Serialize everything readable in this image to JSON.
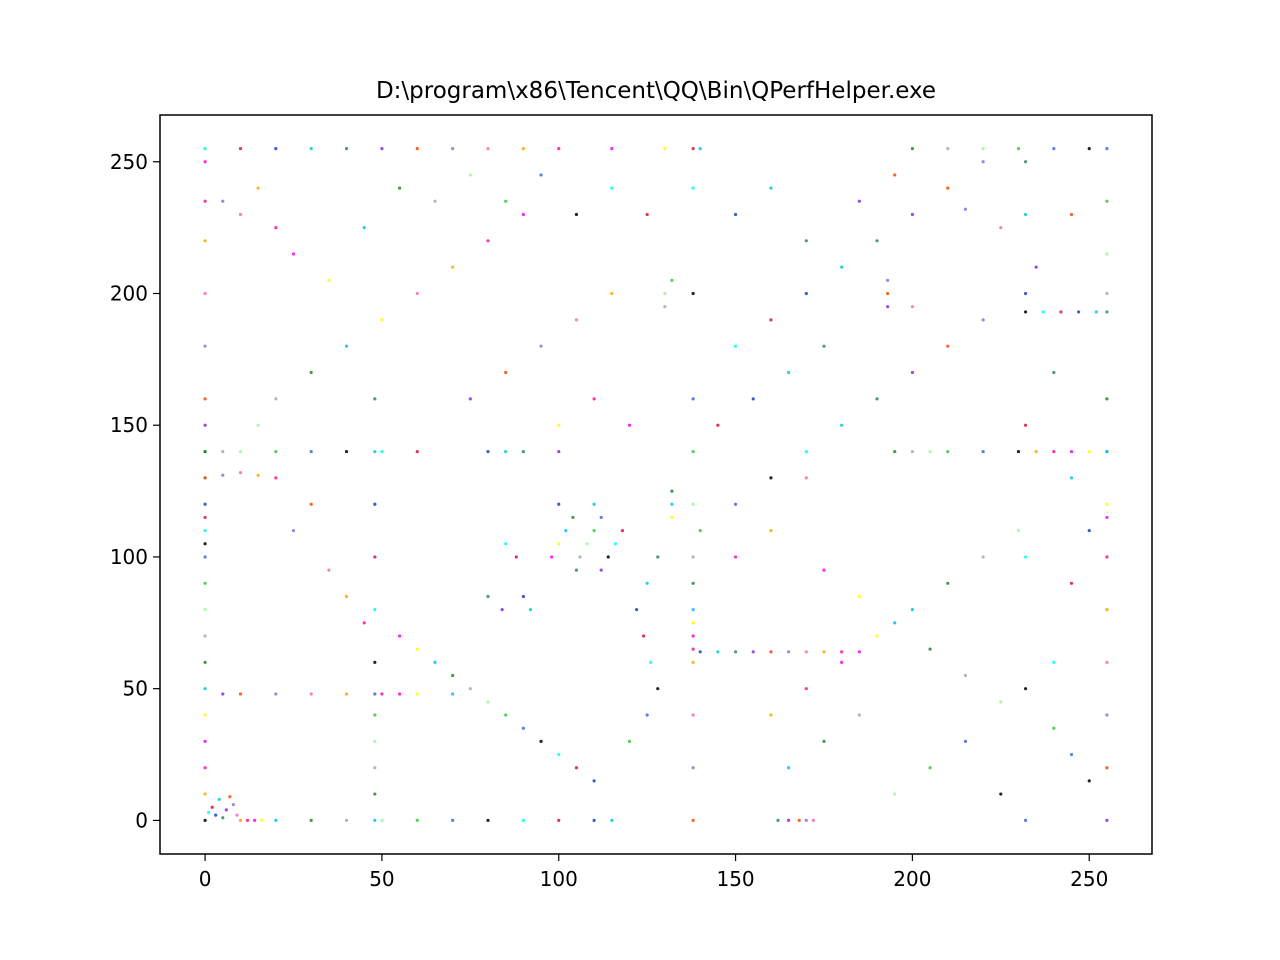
{
  "chart_data": {
    "type": "scatter",
    "title": "D:\\program\\x86\\Tencent\\QQ\\Bin\\QPerfHelper.exe",
    "xlabel": "",
    "ylabel": "",
    "xlim": [
      -12.75,
      267.75
    ],
    "ylim": [
      -12.75,
      267.75
    ],
    "xticks": [
      0,
      50,
      100,
      150,
      200,
      250
    ],
    "yticks": [
      0,
      50,
      100,
      150,
      200,
      250
    ],
    "grid": false,
    "legend": "none",
    "point_palette": [
      "#000000",
      "#1f3fbf",
      "#8a2be2",
      "#ff69b4",
      "#ff00ff",
      "#228b22",
      "#32cd32",
      "#00ffff",
      "#00ced1",
      "#ff4500",
      "#ffa500",
      "#ffff00",
      "#a9a9a9",
      "#4169e1",
      "#dc143c",
      "#2e8b57",
      "#9370db",
      "#ff1493",
      "#00bfff",
      "#98fb98"
    ],
    "series": [
      {
        "note_kind": "scatter",
        "points": [
          [
            0,
            0
          ],
          [
            1,
            3
          ],
          [
            2,
            5
          ],
          [
            3,
            2
          ],
          [
            4,
            8
          ],
          [
            5,
            1
          ],
          [
            6,
            4
          ],
          [
            7,
            9
          ],
          [
            8,
            6
          ],
          [
            9,
            2
          ],
          [
            10,
            0
          ],
          [
            12,
            0
          ],
          [
            14,
            0
          ],
          [
            16,
            0
          ],
          [
            20,
            0
          ],
          [
            30,
            0
          ],
          [
            40,
            0
          ],
          [
            50,
            0
          ],
          [
            60,
            0
          ],
          [
            70,
            0
          ],
          [
            80,
            0
          ],
          [
            90,
            0
          ],
          [
            100,
            0
          ],
          [
            110,
            0
          ],
          [
            115,
            0
          ],
          [
            162,
            0
          ],
          [
            165,
            0
          ],
          [
            168,
            0
          ],
          [
            170,
            0
          ],
          [
            172,
            0
          ],
          [
            0,
            10
          ],
          [
            0,
            20
          ],
          [
            0,
            30
          ],
          [
            0,
            40
          ],
          [
            0,
            50
          ],
          [
            0,
            60
          ],
          [
            0,
            70
          ],
          [
            0,
            80
          ],
          [
            0,
            90
          ],
          [
            0,
            100
          ],
          [
            0,
            105
          ],
          [
            0,
            110
          ],
          [
            0,
            115
          ],
          [
            0,
            120
          ],
          [
            0,
            130
          ],
          [
            0,
            140
          ],
          [
            0,
            150
          ],
          [
            0,
            160
          ],
          [
            0,
            180
          ],
          [
            0,
            200
          ],
          [
            0,
            220
          ],
          [
            0,
            235
          ],
          [
            0,
            250
          ],
          [
            0,
            255
          ],
          [
            48,
            0
          ],
          [
            48,
            10
          ],
          [
            48,
            20
          ],
          [
            48,
            30
          ],
          [
            48,
            40
          ],
          [
            48,
            48
          ],
          [
            48,
            60
          ],
          [
            48,
            80
          ],
          [
            48,
            100
          ],
          [
            48,
            120
          ],
          [
            48,
            140
          ],
          [
            48,
            160
          ],
          [
            5,
            48
          ],
          [
            10,
            48
          ],
          [
            20,
            48
          ],
          [
            30,
            48
          ],
          [
            40,
            48
          ],
          [
            50,
            48
          ],
          [
            55,
            48
          ],
          [
            60,
            48
          ],
          [
            70,
            48
          ],
          [
            0,
            140
          ],
          [
            5,
            140
          ],
          [
            10,
            140
          ],
          [
            20,
            140
          ],
          [
            30,
            140
          ],
          [
            40,
            140
          ],
          [
            50,
            140
          ],
          [
            60,
            140
          ],
          [
            80,
            140
          ],
          [
            85,
            140
          ],
          [
            90,
            140
          ],
          [
            100,
            140
          ],
          [
            0,
            130
          ],
          [
            5,
            131
          ],
          [
            10,
            132
          ],
          [
            15,
            131
          ],
          [
            20,
            130
          ],
          [
            98,
            100
          ],
          [
            100,
            105
          ],
          [
            102,
            110
          ],
          [
            104,
            115
          ],
          [
            106,
            100
          ],
          [
            108,
            105
          ],
          [
            110,
            110
          ],
          [
            112,
            115
          ],
          [
            114,
            100
          ],
          [
            116,
            105
          ],
          [
            118,
            110
          ],
          [
            100,
            120
          ],
          [
            110,
            120
          ],
          [
            105,
            95
          ],
          [
            112,
            95
          ],
          [
            138,
            0
          ],
          [
            138,
            20
          ],
          [
            138,
            40
          ],
          [
            138,
            60
          ],
          [
            138,
            65
          ],
          [
            138,
            70
          ],
          [
            138,
            75
          ],
          [
            138,
            80
          ],
          [
            138,
            90
          ],
          [
            138,
            100
          ],
          [
            138,
            120
          ],
          [
            138,
            140
          ],
          [
            138,
            160
          ],
          [
            138,
            200
          ],
          [
            138,
            240
          ],
          [
            138,
            255
          ],
          [
            140,
            64
          ],
          [
            145,
            64
          ],
          [
            150,
            64
          ],
          [
            155,
            64
          ],
          [
            160,
            64
          ],
          [
            165,
            64
          ],
          [
            170,
            64
          ],
          [
            175,
            64
          ],
          [
            180,
            64
          ],
          [
            185,
            64
          ],
          [
            132,
            115
          ],
          [
            132,
            120
          ],
          [
            132,
            125
          ],
          [
            130,
            195
          ],
          [
            130,
            200
          ],
          [
            132,
            205
          ],
          [
            232,
            0
          ],
          [
            232,
            50
          ],
          [
            232,
            100
          ],
          [
            232,
            150
          ],
          [
            232,
            200
          ],
          [
            232,
            230
          ],
          [
            232,
            250
          ],
          [
            255,
            0
          ],
          [
            255,
            20
          ],
          [
            255,
            40
          ],
          [
            255,
            60
          ],
          [
            255,
            80
          ],
          [
            255,
            100
          ],
          [
            255,
            115
          ],
          [
            255,
            120
          ],
          [
            255,
            140
          ],
          [
            255,
            160
          ],
          [
            255,
            200
          ],
          [
            255,
            215
          ],
          [
            255,
            235
          ],
          [
            255,
            255
          ],
          [
            232,
            193
          ],
          [
            237,
            193
          ],
          [
            242,
            193
          ],
          [
            247,
            193
          ],
          [
            252,
            193
          ],
          [
            255,
            193
          ],
          [
            193,
            195
          ],
          [
            193,
            200
          ],
          [
            193,
            205
          ],
          [
            200,
            195
          ],
          [
            235,
            140
          ],
          [
            240,
            140
          ],
          [
            245,
            140
          ],
          [
            250,
            140
          ],
          [
            255,
            140
          ],
          [
            195,
            140
          ],
          [
            200,
            140
          ],
          [
            205,
            140
          ],
          [
            210,
            140
          ],
          [
            220,
            140
          ],
          [
            230,
            140
          ],
          [
            0,
            255
          ],
          [
            10,
            255
          ],
          [
            20,
            255
          ],
          [
            30,
            255
          ],
          [
            40,
            255
          ],
          [
            50,
            255
          ],
          [
            60,
            255
          ],
          [
            70,
            255
          ],
          [
            80,
            255
          ],
          [
            90,
            255
          ],
          [
            100,
            255
          ],
          [
            115,
            255
          ],
          [
            130,
            255
          ],
          [
            140,
            255
          ],
          [
            200,
            255
          ],
          [
            210,
            255
          ],
          [
            220,
            255
          ],
          [
            230,
            255
          ],
          [
            240,
            255
          ],
          [
            250,
            255
          ],
          [
            85,
            105
          ],
          [
            88,
            100
          ],
          [
            90,
            85
          ],
          [
            92,
            80
          ],
          [
            80,
            85
          ],
          [
            84,
            80
          ],
          [
            30,
            120
          ],
          [
            25,
            110
          ],
          [
            35,
            95
          ],
          [
            40,
            85
          ],
          [
            45,
            75
          ],
          [
            55,
            70
          ],
          [
            60,
            65
          ],
          [
            65,
            60
          ],
          [
            70,
            55
          ],
          [
            75,
            50
          ],
          [
            80,
            45
          ],
          [
            85,
            40
          ],
          [
            90,
            35
          ],
          [
            95,
            30
          ],
          [
            100,
            25
          ],
          [
            105,
            20
          ],
          [
            110,
            15
          ],
          [
            180,
            150
          ],
          [
            190,
            160
          ],
          [
            200,
            170
          ],
          [
            210,
            180
          ],
          [
            220,
            190
          ],
          [
            170,
            130
          ],
          [
            160,
            110
          ],
          [
            150,
            100
          ],
          [
            175,
            95
          ],
          [
            185,
            85
          ],
          [
            195,
            75
          ],
          [
            205,
            65
          ],
          [
            215,
            55
          ],
          [
            225,
            45
          ],
          [
            240,
            35
          ],
          [
            245,
            25
          ],
          [
            250,
            15
          ],
          [
            150,
            180
          ],
          [
            160,
            190
          ],
          [
            170,
            200
          ],
          [
            180,
            210
          ],
          [
            190,
            220
          ],
          [
            200,
            230
          ],
          [
            210,
            240
          ],
          [
            220,
            250
          ],
          [
            60,
            200
          ],
          [
            70,
            210
          ],
          [
            80,
            220
          ],
          [
            90,
            230
          ],
          [
            50,
            190
          ],
          [
            40,
            180
          ],
          [
            30,
            170
          ],
          [
            20,
            160
          ],
          [
            15,
            150
          ],
          [
            120,
            30
          ],
          [
            125,
            40
          ],
          [
            128,
            50
          ],
          [
            126,
            60
          ],
          [
            124,
            70
          ],
          [
            122,
            80
          ],
          [
            125,
            90
          ],
          [
            128,
            100
          ],
          [
            75,
            160
          ],
          [
            85,
            170
          ],
          [
            95,
            180
          ],
          [
            105,
            190
          ],
          [
            115,
            200
          ],
          [
            110,
            160
          ],
          [
            120,
            150
          ],
          [
            100,
            150
          ],
          [
            165,
            20
          ],
          [
            175,
            30
          ],
          [
            185,
            40
          ],
          [
            195,
            10
          ],
          [
            205,
            20
          ],
          [
            215,
            30
          ],
          [
            225,
            10
          ],
          [
            240,
            60
          ],
          [
            245,
            90
          ],
          [
            250,
            110
          ],
          [
            245,
            130
          ],
          [
            240,
            170
          ],
          [
            235,
            210
          ],
          [
            245,
            230
          ],
          [
            5,
            235
          ],
          [
            10,
            230
          ],
          [
            15,
            240
          ],
          [
            20,
            225
          ],
          [
            25,
            215
          ],
          [
            35,
            205
          ],
          [
            45,
            225
          ],
          [
            55,
            240
          ],
          [
            65,
            235
          ],
          [
            75,
            245
          ],
          [
            85,
            235
          ],
          [
            95,
            245
          ],
          [
            105,
            230
          ],
          [
            115,
            240
          ],
          [
            125,
            230
          ],
          [
            150,
            230
          ],
          [
            160,
            240
          ],
          [
            170,
            220
          ],
          [
            185,
            235
          ],
          [
            195,
            245
          ],
          [
            215,
            232
          ],
          [
            225,
            225
          ],
          [
            160,
            40
          ],
          [
            170,
            50
          ],
          [
            180,
            60
          ],
          [
            190,
            70
          ],
          [
            200,
            80
          ],
          [
            210,
            90
          ],
          [
            220,
            100
          ],
          [
            230,
            110
          ],
          [
            140,
            110
          ],
          [
            150,
            120
          ],
          [
            160,
            130
          ],
          [
            170,
            140
          ],
          [
            145,
            150
          ],
          [
            155,
            160
          ],
          [
            165,
            170
          ],
          [
            175,
            180
          ]
        ]
      }
    ]
  }
}
